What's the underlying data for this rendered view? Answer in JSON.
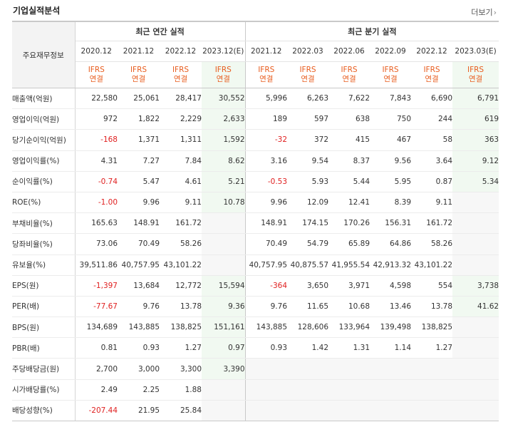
{
  "header": {
    "title": "기업실적분석",
    "more_label": "더보기",
    "more_icon": "chevron-right-icon"
  },
  "table": {
    "item_header": "주요재무정보",
    "annual_header": "최근 연간 실적",
    "quarter_header": "최근 분기 실적",
    "periods": [
      "2020.12",
      "2021.12",
      "2022.12",
      "2023.12(E)",
      "2021.12",
      "2022.03",
      "2022.06",
      "2022.09",
      "2022.12",
      "2023.03(E)"
    ],
    "ifrs_top": "IFRS",
    "ifrs_bottom": "연결",
    "rows": [
      {
        "label": "매출액(억원)",
        "values": [
          "22,580",
          "25,061",
          "28,417",
          "30,552",
          "5,996",
          "6,263",
          "7,622",
          "7,843",
          "6,690",
          "6,791"
        ]
      },
      {
        "label": "영업이익(억원)",
        "values": [
          "972",
          "1,822",
          "2,229",
          "2,633",
          "189",
          "597",
          "638",
          "750",
          "244",
          "619"
        ]
      },
      {
        "label": "당기순이익(억원)",
        "values": [
          "-168",
          "1,371",
          "1,311",
          "1,592",
          "-32",
          "372",
          "415",
          "467",
          "58",
          "363"
        ]
      },
      {
        "label": "영업이익률(%)",
        "values": [
          "4.31",
          "7.27",
          "7.84",
          "8.62",
          "3.16",
          "9.54",
          "8.37",
          "9.56",
          "3.64",
          "9.12"
        ]
      },
      {
        "label": "순이익률(%)",
        "values": [
          "-0.74",
          "5.47",
          "4.61",
          "5.21",
          "-0.53",
          "5.93",
          "5.44",
          "5.95",
          "0.87",
          "5.34"
        ]
      },
      {
        "label": "ROE(%)",
        "values": [
          "-1.00",
          "9.96",
          "9.11",
          "10.78",
          "9.96",
          "12.09",
          "12.41",
          "8.39",
          "9.11",
          ""
        ]
      },
      {
        "label": "부채비율(%)",
        "values": [
          "165.63",
          "148.91",
          "161.72",
          "",
          "148.91",
          "174.15",
          "170.26",
          "156.31",
          "161.72",
          ""
        ]
      },
      {
        "label": "당좌비율(%)",
        "values": [
          "73.06",
          "70.49",
          "58.26",
          "",
          "70.49",
          "54.79",
          "65.89",
          "64.86",
          "58.26",
          ""
        ]
      },
      {
        "label": "유보율(%)",
        "values": [
          "39,511.86",
          "40,757.95",
          "43,101.22",
          "",
          "40,757.95",
          "40,875.57",
          "41,955.54",
          "42,913.32",
          "43,101.22",
          ""
        ]
      },
      {
        "label": "EPS(원)",
        "values": [
          "-1,397",
          "13,684",
          "12,772",
          "15,594",
          "-364",
          "3,650",
          "3,971",
          "4,598",
          "554",
          "3,738"
        ]
      },
      {
        "label": "PER(배)",
        "values": [
          "-77.67",
          "9.76",
          "13.78",
          "9.36",
          "9.76",
          "11.65",
          "10.68",
          "13.46",
          "13.78",
          "41.62"
        ]
      },
      {
        "label": "BPS(원)",
        "values": [
          "134,689",
          "143,885",
          "138,825",
          "151,161",
          "143,885",
          "128,606",
          "133,964",
          "139,498",
          "138,825",
          ""
        ]
      },
      {
        "label": "PBR(배)",
        "values": [
          "0.81",
          "0.93",
          "1.27",
          "0.97",
          "0.93",
          "1.42",
          "1.31",
          "1.14",
          "1.27",
          ""
        ]
      },
      {
        "label": "주당배당금(원)",
        "values": [
          "2,700",
          "3,000",
          "3,300",
          "3,390",
          "",
          "",
          "",
          "",
          "",
          ""
        ]
      },
      {
        "label": "시가배당률(%)",
        "values": [
          "2.49",
          "2.25",
          "1.88",
          "",
          "",
          "",
          "",
          "",
          "",
          ""
        ]
      },
      {
        "label": "배당성향(%)",
        "values": [
          "-207.44",
          "21.95",
          "25.84",
          "",
          "",
          "",
          "",
          "",
          "",
          ""
        ]
      }
    ]
  },
  "colors": {
    "negative": "#e02020",
    "ifrs": "#e85d1f",
    "estimate_bg": "#f1f9f1",
    "header_bg": "#f3f3f3",
    "empty_bg": "#f7f7f7"
  }
}
